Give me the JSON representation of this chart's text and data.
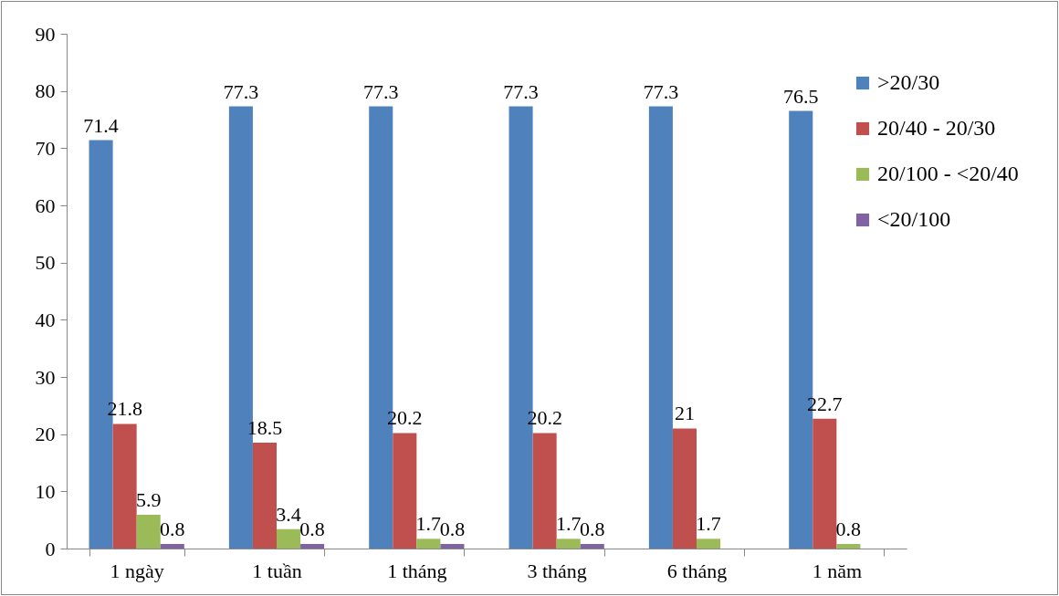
{
  "chart_data": {
    "type": "bar",
    "categories": [
      "1 ngày",
      "1 tuần",
      "1 tháng",
      "3 tháng",
      "6 tháng",
      "1 năm"
    ],
    "series": [
      {
        "name": ">20/30",
        "color": "#4f81bd",
        "values": [
          71.4,
          77.3,
          77.3,
          77.3,
          77.3,
          76.5
        ]
      },
      {
        "name": "20/40 - 20/30",
        "color": "#c0504d",
        "values": [
          21.8,
          18.5,
          20.2,
          20.2,
          21,
          22.7
        ]
      },
      {
        "name": "20/100 - <20/40",
        "color": "#9bbb59",
        "values": [
          5.9,
          3.4,
          1.7,
          1.7,
          1.7,
          0.8
        ]
      },
      {
        "name": "<20/100",
        "color": "#8064a2",
        "values": [
          0.8,
          0.8,
          0.8,
          0.8,
          null,
          null
        ]
      }
    ],
    "ylim": [
      0,
      90
    ],
    "yticks": [
      0,
      10,
      20,
      30,
      40,
      50,
      60,
      70,
      80,
      90
    ],
    "grid": false,
    "legend": "right",
    "data_labels": true
  }
}
